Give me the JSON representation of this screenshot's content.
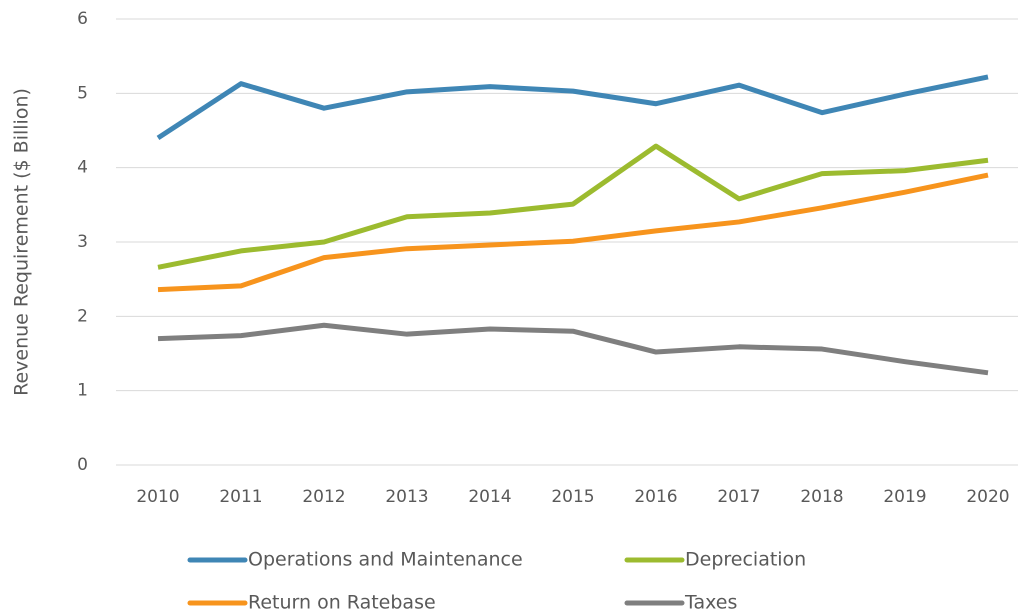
{
  "chart_data": {
    "type": "line",
    "y_label": "Revenue Requirement ($ Billion)",
    "categories": [
      "2010",
      "2011",
      "2012",
      "2013",
      "2014",
      "2015",
      "2016",
      "2017",
      "2018",
      "2019",
      "2020"
    ],
    "series": [
      {
        "name": "Operations and Maintenance",
        "color": "#3f86b5",
        "values": [
          4.4,
          5.13,
          4.8,
          5.02,
          5.09,
          5.03,
          4.86,
          5.11,
          4.74,
          4.99,
          5.22
        ]
      },
      {
        "name": "Depreciation",
        "color": "#9cbb2f",
        "values": [
          2.66,
          2.88,
          3.0,
          3.34,
          3.39,
          3.51,
          4.29,
          3.58,
          3.92,
          3.96,
          4.1
        ]
      },
      {
        "name": "Return on Ratebase",
        "color": "#f7941d",
        "values": [
          2.36,
          2.41,
          2.79,
          2.91,
          2.96,
          3.01,
          3.15,
          3.27,
          3.46,
          3.67,
          3.9
        ]
      },
      {
        "name": "Taxes",
        "color": "#7f7f7f",
        "values": [
          1.7,
          1.74,
          1.88,
          1.76,
          1.83,
          1.8,
          1.52,
          1.59,
          1.56,
          1.39,
          1.24
        ]
      }
    ],
    "ylim": [
      0,
      6
    ],
    "yticks": [
      0,
      1,
      2,
      3,
      4,
      5,
      6
    ],
    "grid": true
  }
}
